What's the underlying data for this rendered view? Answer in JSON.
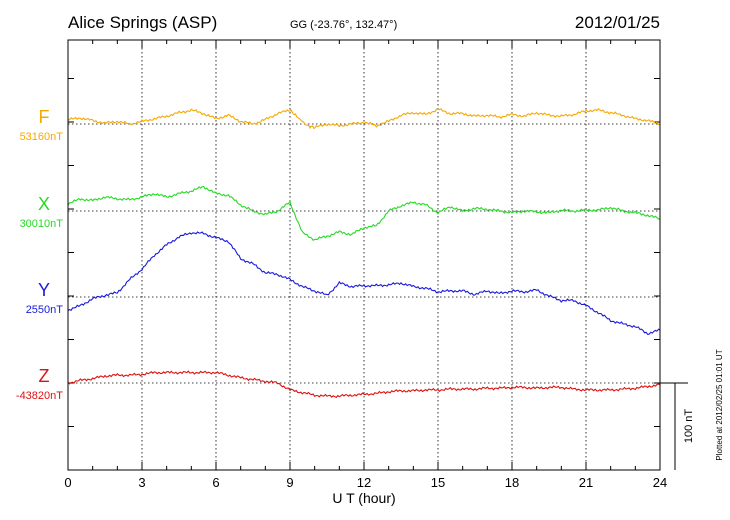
{
  "chart_data": {
    "type": "line",
    "title": "Alice Springs (ASP)",
    "subtitle": "GG (-23.76°, 132.47°)",
    "date": "2012/01/25",
    "xlabel": "U T (hour)",
    "xlim": [
      0,
      24
    ],
    "x_ticks": [
      "0",
      "3",
      "6",
      "9",
      "12",
      "15",
      "18",
      "21",
      "24"
    ],
    "scale_label": "100 nT",
    "scale_nT": 100,
    "footer": "Plotted at 2012/02/25 01:01 UT",
    "grid": true,
    "series": [
      {
        "name": "F",
        "baseline_label": "53160nT",
        "baseline_nT": 53160,
        "color": "#f5a800",
        "x": [
          0,
          0.5,
          1,
          1.5,
          2,
          2.5,
          3,
          3.5,
          4,
          4.5,
          5,
          5.5,
          6,
          6.5,
          7,
          7.5,
          8,
          8.5,
          9,
          9.3,
          9.7,
          10,
          10.5,
          11,
          11.5,
          12,
          12.5,
          13,
          13.5,
          14,
          14.5,
          15,
          15.5,
          16,
          16.5,
          17,
          17.5,
          18,
          18.5,
          19,
          19.5,
          20,
          20.5,
          21,
          21.5,
          22,
          22.5,
          23,
          23.5,
          24
        ],
        "y": [
          53165,
          53167,
          53164,
          53161,
          53163,
          53160,
          53163,
          53166,
          53169,
          53173,
          53176,
          53172,
          53166,
          53170,
          53163,
          53160,
          53165,
          53172,
          53176,
          53168,
          53158,
          53156,
          53160,
          53158,
          53160,
          53162,
          53158,
          53163,
          53170,
          53173,
          53171,
          53177,
          53172,
          53172,
          53169,
          53170,
          53168,
          53171,
          53169,
          53173,
          53170,
          53169,
          53171,
          53175,
          53176,
          53173,
          53170,
          53166,
          53164,
          53160
        ]
      },
      {
        "name": "X",
        "baseline_label": "30010nT",
        "baseline_nT": 30010,
        "color": "#22dd22",
        "x": [
          0,
          0.5,
          1,
          1.5,
          2,
          2.5,
          3,
          3.5,
          4,
          4.5,
          5,
          5.5,
          6,
          6.5,
          7,
          7.5,
          8,
          8.5,
          9,
          9.5,
          10,
          10.5,
          11,
          11.5,
          12,
          12.5,
          13,
          13.5,
          14,
          14.5,
          15,
          15.5,
          16,
          16.5,
          17,
          17.5,
          18,
          18.5,
          19,
          19.5,
          20,
          20.5,
          21,
          21.5,
          22,
          22.5,
          23,
          23.5,
          24
        ],
        "y": [
          30018,
          30024,
          30022,
          30026,
          30024,
          30023,
          30026,
          30030,
          30026,
          30030,
          30033,
          30038,
          30030,
          30028,
          30017,
          30010,
          30006,
          30010,
          30020,
          29985,
          29977,
          29981,
          29986,
          29983,
          29991,
          29993,
          30010,
          30016,
          30020,
          30017,
          30008,
          30015,
          30010,
          30013,
          30012,
          30010,
          30008,
          30010,
          30009,
          30008,
          30011,
          30010,
          30011,
          30011,
          30014,
          30010,
          30008,
          30005,
          30001
        ]
      },
      {
        "name": "Y",
        "baseline_label": "2550nT",
        "baseline_nT": 2550,
        "color": "#1a1add",
        "x": [
          0,
          0.5,
          1,
          1.5,
          2,
          2.5,
          3,
          3.5,
          4,
          4.5,
          5,
          5.5,
          6,
          6.5,
          7,
          7.5,
          8,
          8.5,
          9,
          9.5,
          10,
          10.5,
          11,
          11.5,
          12,
          12.5,
          13,
          13.5,
          14,
          14.5,
          15,
          15.5,
          16,
          16.5,
          17,
          17.5,
          18,
          18.5,
          19,
          19.5,
          20,
          20.5,
          21,
          21.5,
          22,
          22.5,
          23,
          23.5,
          24
        ],
        "y": [
          2535,
          2540,
          2548,
          2552,
          2555,
          2570,
          2582,
          2598,
          2610,
          2619,
          2624,
          2623,
          2618,
          2614,
          2594,
          2588,
          2578,
          2576,
          2570,
          2562,
          2557,
          2552,
          2566,
          2562,
          2563,
          2563,
          2564,
          2566,
          2562,
          2560,
          2556,
          2557,
          2557,
          2553,
          2557,
          2554,
          2557,
          2556,
          2558,
          2551,
          2546,
          2546,
          2540,
          2532,
          2523,
          2519,
          2516,
          2508,
          2512
        ]
      },
      {
        "name": "Z",
        "baseline_label": "-43820nT",
        "baseline_nT": -43820,
        "color": "#dd1111",
        "x": [
          0,
          0.5,
          1,
          1.5,
          2,
          2.5,
          3,
          3.5,
          4,
          4.5,
          5,
          5.5,
          6,
          6.5,
          7,
          7.5,
          8,
          8.5,
          9,
          9.5,
          10,
          10.5,
          11,
          11.5,
          12,
          12.5,
          13,
          13.5,
          14,
          14.5,
          15,
          15.5,
          16,
          16.5,
          17,
          17.5,
          18,
          18.5,
          19,
          19.5,
          20,
          20.5,
          21,
          21.5,
          22,
          22.5,
          23,
          23.5,
          24
        ],
        "y": [
          -43820,
          -43817,
          -43815,
          -43812,
          -43811,
          -43811,
          -43810,
          -43808,
          -43808,
          -43808,
          -43808,
          -43808,
          -43808,
          -43811,
          -43814,
          -43816,
          -43818,
          -43820,
          -43828,
          -43831,
          -43834,
          -43835,
          -43835,
          -43834,
          -43833,
          -43832,
          -43830,
          -43829,
          -43829,
          -43828,
          -43828,
          -43827,
          -43827,
          -43827,
          -43826,
          -43826,
          -43825,
          -43825,
          -43826,
          -43825,
          -43825,
          -43827,
          -43828,
          -43828,
          -43828,
          -43827,
          -43826,
          -43824,
          -43822
        ]
      }
    ]
  }
}
